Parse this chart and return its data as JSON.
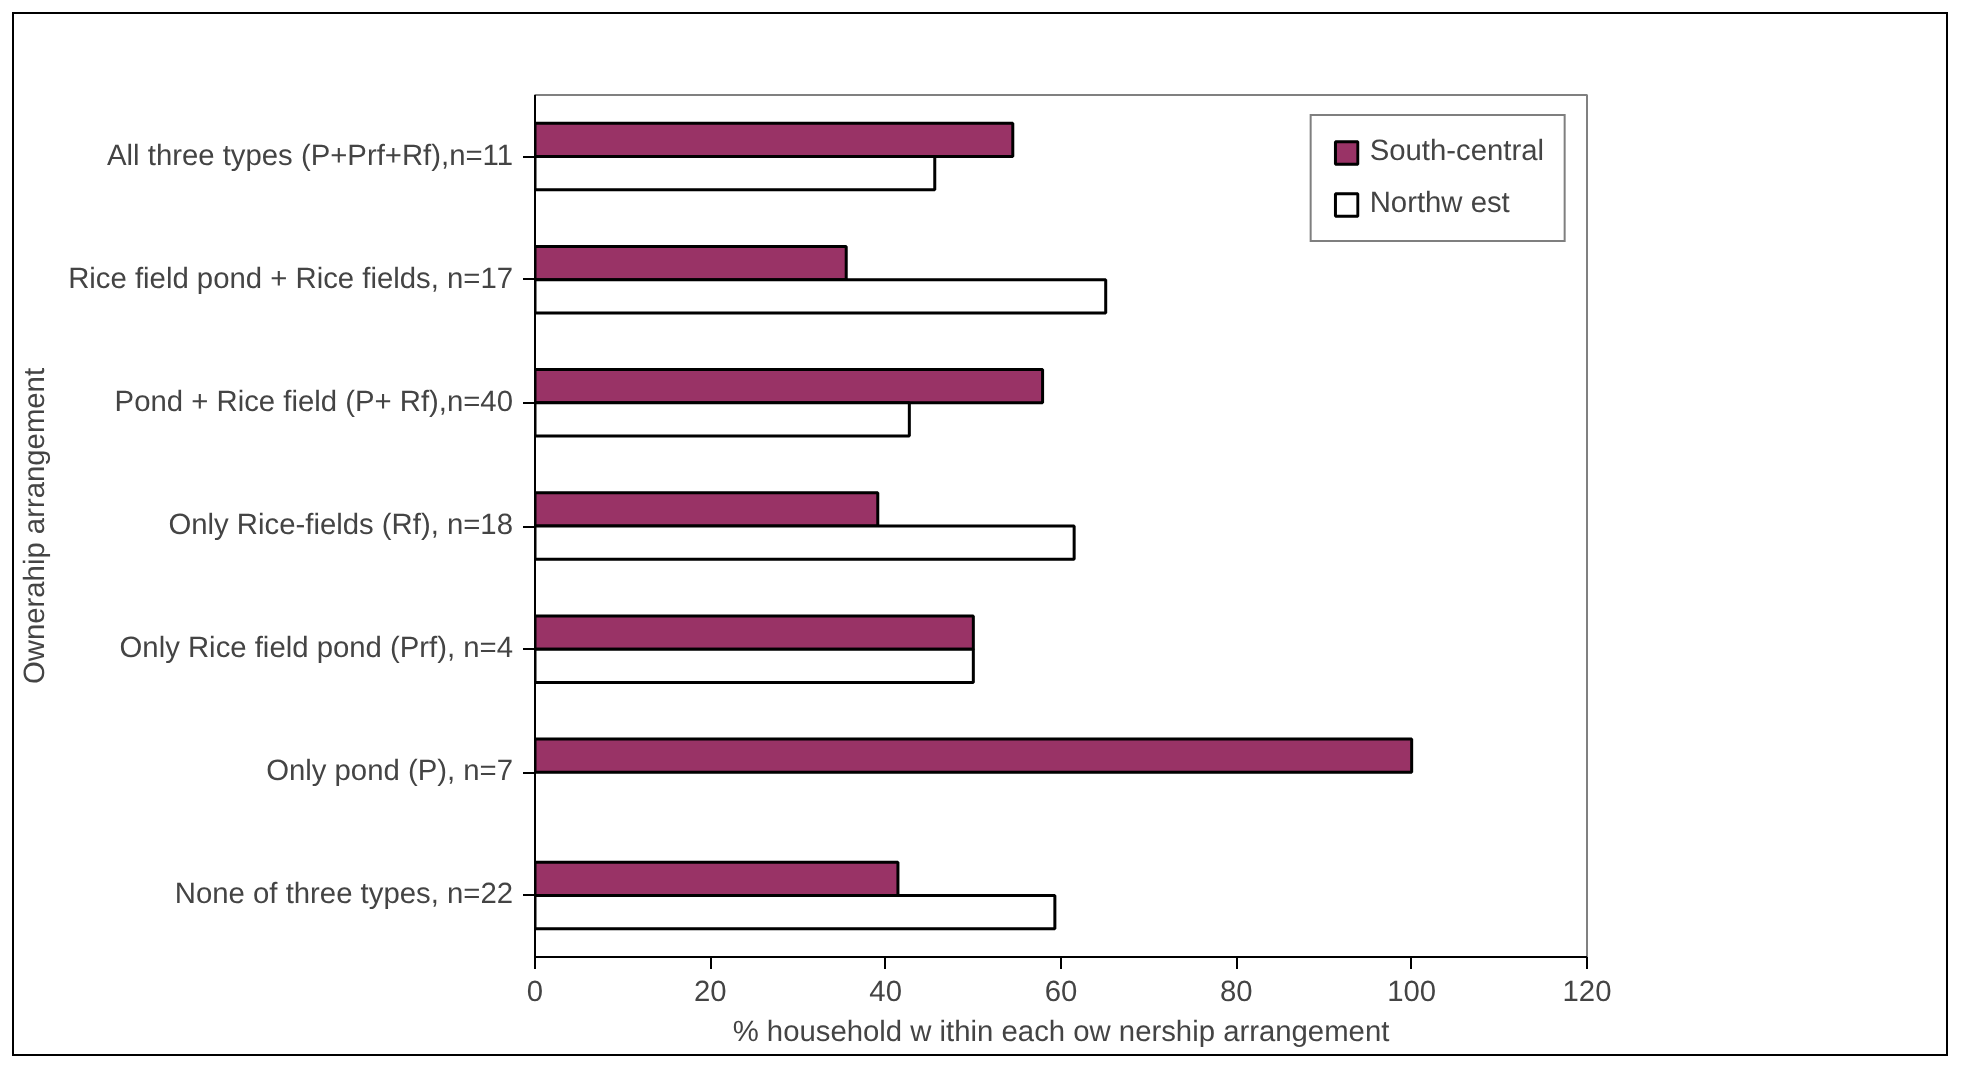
{
  "chart_data": {
    "type": "bar",
    "orientation": "horizontal",
    "categories": [
      "All three types (P+Prf+Rf),n=11",
      "Rice field pond + Rice fields, n=17",
      "Pond + Rice field (P+ Rf),n=40",
      "Only Rice-fields (Rf), n=18",
      "Only Rice field pond (Prf), n=4",
      "Only pond (P), n=7",
      "None of three types, n=22"
    ],
    "series": [
      {
        "name": "South-central",
        "color": "#993366",
        "values": [
          54.5,
          35.5,
          57.9,
          39.1,
          50,
          100,
          41.4
        ]
      },
      {
        "name": "Northw est",
        "color": "#ffffff",
        "values": [
          45.6,
          65.1,
          42.7,
          61.5,
          50,
          null,
          59.3
        ]
      }
    ],
    "xlim": [
      0,
      120
    ],
    "xticks": [
      0,
      20,
      40,
      60,
      80,
      100,
      120
    ],
    "xlabel": "% household w ithin each ow nership arrangement",
    "ylabel": "Ownerahip arrangement",
    "legend": "top right",
    "grid": false
  }
}
